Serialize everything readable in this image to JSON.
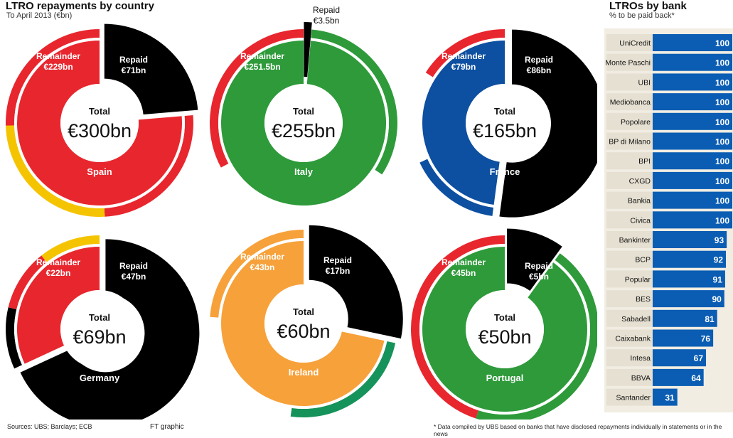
{
  "left_header": {
    "title": "LTRO repayments by country",
    "subtitle": "To April 2013 (€bn)"
  },
  "right_header": {
    "title": "LTROs by bank",
    "subtitle": "% to be paid back*"
  },
  "footer": {
    "sources": "Sources: UBS; Barclays; ECB",
    "credit": "FT graphic",
    "note": "* Data compiled by UBS based on banks that have disclosed repayments individually in statements or in the news"
  },
  "chart_data": [
    {
      "type": "pie",
      "title": "LTRO repayments by country",
      "countries": [
        {
          "name": "Spain",
          "total_label": "Total",
          "total": "€300bn",
          "total_value": 300,
          "slices": [
            {
              "label": "Repaid",
              "value_label": "€71bn",
              "value": 71
            },
            {
              "label": "Remainder",
              "value_label": "€229bn",
              "value": 229
            }
          ],
          "colors": {
            "remainder": "#e8262e",
            "repaid": "#000000",
            "flag": [
              "#e8262e",
              "#f5c400",
              "#e8262e"
            ]
          }
        },
        {
          "name": "Italy",
          "total_label": "Total",
          "total": "€255bn",
          "total_value": 255,
          "slices": [
            {
              "label": "Repaid",
              "value_label": "€3.5bn",
              "value": 3.5
            },
            {
              "label": "Remainder",
              "value_label": "€251.5bn",
              "value": 251.5
            }
          ],
          "colors": {
            "remainder": "#2e9a3a",
            "repaid": "#000000",
            "flag": [
              "#2e9a3a",
              "#ffffff",
              "#e8262e"
            ]
          }
        },
        {
          "name": "France",
          "total_label": "Total",
          "total": "€165bn",
          "total_value": 165,
          "slices": [
            {
              "label": "Repaid",
              "value_label": "€86bn",
              "value": 86
            },
            {
              "label": "Remainder",
              "value_label": "€79bn",
              "value": 79
            }
          ],
          "colors": {
            "remainder": "#0d4fa0",
            "repaid": "#000000",
            "flag": [
              "#0d4fa0",
              "#ffffff",
              "#e8262e"
            ]
          }
        },
        {
          "name": "Germany",
          "total_label": "Total",
          "total": "€69bn",
          "total_value": 69,
          "slices": [
            {
              "label": "Repaid",
              "value_label": "€47bn",
              "value": 47
            },
            {
              "label": "Remainder",
              "value_label": "€22bn",
              "value": 22
            }
          ],
          "colors": {
            "remainder": "#e8262e",
            "repaid": "#000000",
            "flag": [
              "#000000",
              "#e8262e",
              "#f5c400"
            ]
          }
        },
        {
          "name": "Ireland",
          "total_label": "Total",
          "total": "€60bn",
          "total_value": 60,
          "slices": [
            {
              "label": "Repaid",
              "value_label": "€17bn",
              "value": 17
            },
            {
              "label": "Remainder",
              "value_label": "€43bn",
              "value": 43
            }
          ],
          "colors": {
            "remainder": "#f7a13a",
            "repaid": "#000000",
            "flag": [
              "#15935a",
              "#ffffff",
              "#f7a13a"
            ]
          }
        },
        {
          "name": "Portugal",
          "total_label": "Total",
          "total": "€50bn",
          "total_value": 50,
          "slices": [
            {
              "label": "Repaid",
              "value_label": "€5bn",
              "value": 5
            },
            {
              "label": "Remainder",
              "value_label": "€45bn",
              "value": 45
            }
          ],
          "colors": {
            "remainder": "#2e9a3a",
            "repaid": "#000000",
            "flag": [
              "#2e9a3a",
              "#e8262e"
            ]
          }
        }
      ]
    },
    {
      "type": "bar",
      "orientation": "horizontal",
      "title": "LTROs by bank",
      "subtitle": "% to be paid back*",
      "xlim": [
        0,
        100
      ],
      "bar_color": "#0a5db3",
      "categories": [
        "UniCredit",
        "Monte Paschi",
        "UBI",
        "Mediobanca",
        "Popolare",
        "BP di Milano",
        "BPI",
        "CXGD",
        "Bankia",
        "Civica",
        "Bankinter",
        "BCP",
        "Popular",
        "BES",
        "Sabadell",
        "Caixabank",
        "Intesa",
        "BBVA",
        "Santander"
      ],
      "values": [
        100,
        100,
        100,
        100,
        100,
        100,
        100,
        100,
        100,
        100,
        93,
        92,
        91,
        90,
        81,
        76,
        67,
        64,
        31
      ]
    }
  ]
}
